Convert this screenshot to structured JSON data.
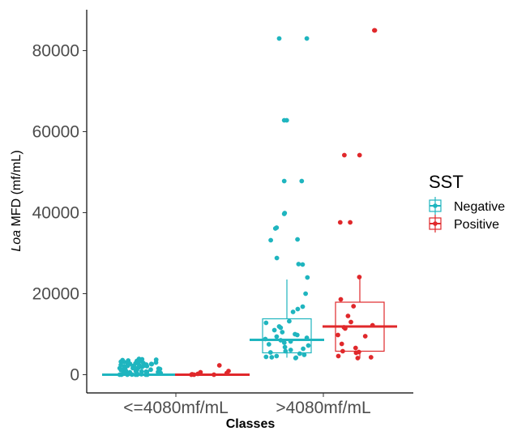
{
  "chart_data": {
    "type": "box-jitter",
    "xlabel": "Classes",
    "ylabel_italic": "Loa",
    "ylabel_rest": " MFD (mf/mL)",
    "ylim": [
      -4000,
      89000
    ],
    "yticks": [
      0,
      20000,
      40000,
      60000,
      80000
    ],
    "ytick_labels": [
      "0",
      "20000",
      "40000",
      "60000",
      "80000"
    ],
    "categories": [
      "<=4080mf/mL",
      ">4080mf/mL"
    ],
    "legend": {
      "title": "SST",
      "position": "right",
      "entries": [
        "Negative",
        "Positive"
      ]
    },
    "series": [
      {
        "name": "Negative",
        "color": "#1fb5bf",
        "boxes": [
          {
            "category": "<=4080mf/mL",
            "min": 0,
            "q1": 0,
            "median": 0,
            "q3": 0,
            "max": 0
          },
          {
            "category": ">4080mf/mL",
            "min": 4200,
            "q1": 5400,
            "median": 8600,
            "q3": 13800,
            "max": 23500
          }
        ],
        "points": [
          {
            "category": "<=4080mf/mL",
            "values": [
              3900,
              3800,
              3600,
              3500,
              3400,
              3300,
              3200,
              3000,
              2900,
              2800,
              2700,
              2600,
              2500,
              2400,
              2300,
              2200,
              2100,
              2000,
              1900,
              1800,
              1700,
              1600,
              1500,
              1400,
              1300,
              1200,
              1100,
              1000,
              900,
              800,
              700,
              600,
              500,
              400,
              300,
              200,
              100,
              50,
              3100,
              2650,
              2150,
              1650,
              1150,
              650,
              150,
              3700,
              3250,
              2750,
              2250,
              1750,
              1250,
              750,
              250,
              0,
              0,
              0,
              0,
              0,
              0,
              0
            ]
          },
          {
            "category": ">4080mf/mL",
            "values": [
              83000,
              83000,
              62800,
              62800,
              47800,
              47800,
              39900,
              39700,
              36300,
              36100,
              33400,
              33200,
              28800,
              27300,
              27200,
              24000,
              20000,
              16800,
              16200,
              15500,
              13200,
              12800,
              11900,
              11600,
              11000,
              10500,
              10000,
              9800,
              9400,
              9100,
              8800,
              8500,
              8200,
              7900,
              7500,
              7200,
              6800,
              6400,
              6100,
              5800,
              5500,
              5200,
              4900,
              4600,
              4400,
              4300,
              4200,
              4100
            ]
          }
        ]
      },
      {
        "name": "Positive",
        "color": "#e0282b",
        "boxes": [
          {
            "category": "<=4080mf/mL",
            "min": 0,
            "q1": 0,
            "median": 0,
            "q3": 0,
            "max": 0
          },
          {
            "category": ">4080mf/mL",
            "min": 4000,
            "q1": 5800,
            "median": 11900,
            "q3": 17900,
            "max": 24000
          }
        ],
        "points": [
          {
            "category": "<=4080mf/mL",
            "values": [
              2300,
              900,
              600,
              400,
              200,
              100,
              0,
              0,
              0
            ]
          },
          {
            "category": ">4080mf/mL",
            "values": [
              85000,
              85000,
              54200,
              54200,
              37600,
              37600,
              24100,
              18600,
              16900,
              14500,
              13000,
              12200,
              11700,
              11400,
              9800,
              9500,
              7600,
              6600,
              5800,
              5600,
              5400,
              4600,
              4300,
              4100
            ]
          }
        ]
      }
    ]
  }
}
